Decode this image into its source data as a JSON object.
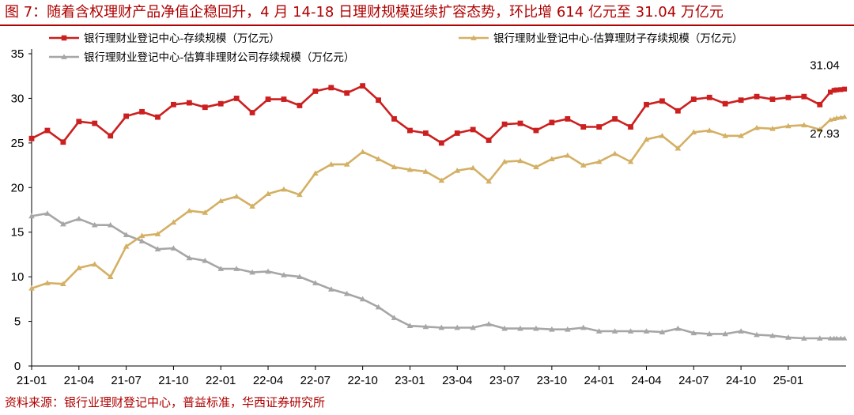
{
  "title": "图 7：随着含权理财产品净值企稳回升，4 月 14-18 日理财规模延续扩容态势，环比增 614 亿元至 31.04 万亿元",
  "source": "资料来源：银行业理财登记中心，普益标准，华西证券研究所",
  "colors": {
    "accent": "#b00000"
  },
  "chart_data": {
    "type": "line",
    "x_ticks": [
      "21-01",
      "21-04",
      "21-07",
      "21-10",
      "22-01",
      "22-04",
      "22-07",
      "22-10",
      "23-01",
      "23-04",
      "23-07",
      "23-10",
      "24-01",
      "24-04",
      "24-07",
      "24-10",
      "25-01"
    ],
    "ylim": [
      0,
      35
    ],
    "y_ticks": [
      0,
      5,
      10,
      15,
      20,
      25,
      30,
      35
    ],
    "grid": false,
    "legend_position": "top-left",
    "x": [
      "2021-01",
      "2021-02",
      "2021-03",
      "2021-04",
      "2021-05",
      "2021-06",
      "2021-07",
      "2021-08",
      "2021-09",
      "2021-10",
      "2021-11",
      "2021-12",
      "2022-01",
      "2022-02",
      "2022-03",
      "2022-04",
      "2022-05",
      "2022-06",
      "2022-07",
      "2022-08",
      "2022-09",
      "2022-10",
      "2022-11",
      "2022-12",
      "2023-01",
      "2023-02",
      "2023-03",
      "2023-04",
      "2023-05",
      "2023-06",
      "2023-07",
      "2023-08",
      "2023-09",
      "2023-10",
      "2023-11",
      "2023-12",
      "2024-01",
      "2024-02",
      "2024-03",
      "2024-04",
      "2024-05",
      "2024-06",
      "2024-07",
      "2024-08",
      "2024-09",
      "2024-10",
      "2024-11",
      "2024-12",
      "2025-01",
      "2025-02",
      "2025-03"
    ],
    "series": [
      {
        "name": "银行理财业登记中心-存续规模（万亿元）",
        "color": "#cc1f1f",
        "marker": "square",
        "values": [
          25.5,
          26.4,
          25.1,
          27.4,
          27.2,
          25.8,
          28.0,
          28.5,
          27.9,
          29.3,
          29.5,
          29.0,
          29.4,
          30.0,
          28.4,
          29.9,
          29.9,
          29.2,
          30.8,
          31.2,
          30.6,
          31.4,
          29.8,
          27.7,
          26.4,
          26.1,
          25.0,
          26.1,
          26.5,
          25.3,
          27.1,
          27.2,
          26.4,
          27.3,
          27.7,
          26.8,
          26.8,
          27.7,
          26.8,
          29.3,
          29.7,
          28.6,
          29.9,
          30.1,
          29.4,
          29.8,
          30.2,
          29.9,
          30.1,
          30.2,
          29.3
        ]
      },
      {
        "name": "银行理财业登记中心-估算理财子存续规模（万亿元）",
        "color": "#d4b064",
        "marker": "triangle",
        "values": [
          8.7,
          9.3,
          9.2,
          11.0,
          11.4,
          10.0,
          13.4,
          14.6,
          14.8,
          16.1,
          17.4,
          17.2,
          18.5,
          19.0,
          17.9,
          19.3,
          19.8,
          19.2,
          21.6,
          22.6,
          22.6,
          24.0,
          23.2,
          22.3,
          22.0,
          21.8,
          20.8,
          21.9,
          22.2,
          20.7,
          22.9,
          23.0,
          22.3,
          23.2,
          23.6,
          22.5,
          22.9,
          23.8,
          22.9,
          25.4,
          25.8,
          24.4,
          26.2,
          26.4,
          25.8,
          25.8,
          26.7,
          26.6,
          26.9,
          27.0,
          26.5
        ]
      },
      {
        "name": "银行理财业登记中心-估算非理财公司存续规模（万亿元）",
        "color": "#a6a6a6",
        "marker": "triangle",
        "values": [
          16.8,
          17.1,
          15.9,
          16.5,
          15.8,
          15.8,
          14.7,
          14.0,
          13.1,
          13.2,
          12.1,
          11.8,
          10.9,
          10.9,
          10.5,
          10.6,
          10.2,
          10.0,
          9.3,
          8.6,
          8.1,
          7.5,
          6.6,
          5.4,
          4.5,
          4.4,
          4.3,
          4.3,
          4.3,
          4.7,
          4.2,
          4.2,
          4.2,
          4.1,
          4.1,
          4.3,
          3.9,
          3.9,
          3.9,
          3.9,
          3.8,
          4.2,
          3.7,
          3.6,
          3.6,
          3.9,
          3.5,
          3.4,
          3.2,
          3.1,
          3.1
        ]
      }
    ],
    "weekly_tail": {
      "x": [
        "2025-03-21",
        "2025-03-28",
        "2025-04-03",
        "2025-04-11",
        "2025-04-18"
      ],
      "series": [
        [
          30.7,
          30.9,
          30.95,
          30.98,
          31.04
        ],
        [
          27.6,
          27.7,
          27.8,
          27.85,
          27.93
        ],
        [
          3.1,
          3.1,
          3.1,
          3.1,
          3.1
        ]
      ]
    },
    "annotations": [
      {
        "text": "31.04",
        "series": 0
      },
      {
        "text": "27.93",
        "series": 1
      }
    ]
  }
}
